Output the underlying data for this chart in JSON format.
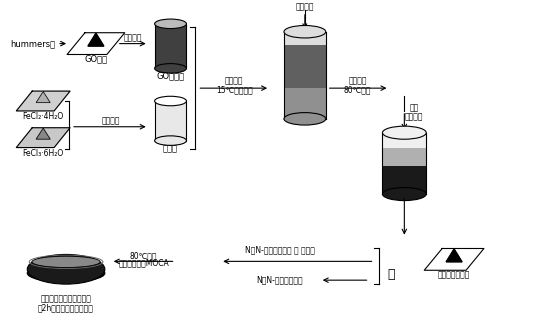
{
  "bg_color": "#ffffff",
  "lc": "#000000",
  "fs": 6.0,
  "fs_s": 5.5,
  "labels": {
    "hummers": "hummers法",
    "GO_powder": "GO粉末",
    "ultrasonic1": "超声分散",
    "GO_solution": "GO水溶液",
    "FeCl2": "FeCl₂·4H₂O",
    "FeCl3": "FeCl₃·6H₂O",
    "ultrasonic2": "超声分散",
    "mixture_liq": "混合液",
    "mech_stir1_1": "机械搨拌",
    "mech_stir1_2": "15℃以下水浴",
    "drip_ammonia": "滴加氨水",
    "mech_stir2_1": "机械搨拌",
    "mech_stir2_2": "80℃水浴",
    "cool1": "冷却",
    "cool2": "离心处理",
    "DMF_PU": "N，N-二甲基甲酰胺 ＋ 聚氨酯",
    "DMF": "N，N-二甲基甲酰胺",
    "mag_graphene": "磁性石墨烯粉末",
    "plus": "＋",
    "bath80_1": "80℃水浴",
    "bath80_2": "真空搨拌，加MOCA",
    "mold_text1": "混合液加入模具，放入磁",
    "mold_text2": "场2h后干燥得到复合材料"
  }
}
